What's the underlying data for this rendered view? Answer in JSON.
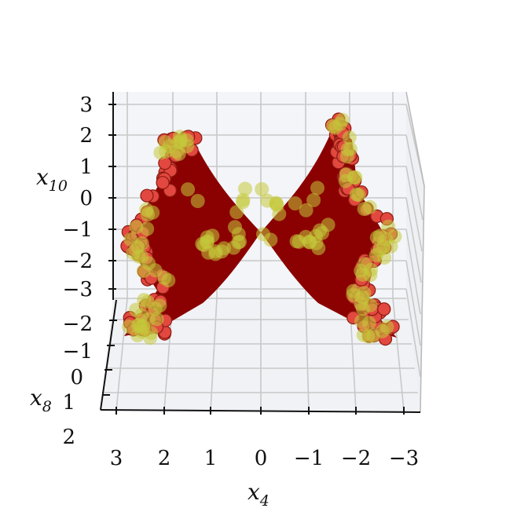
{
  "chart_data": {
    "type": "scatter",
    "projection": "3d",
    "title": "",
    "axes": {
      "x": {
        "label": "x",
        "subscript": "4",
        "ticks": [
          "3",
          "2",
          "1",
          "0",
          "−1",
          "−2",
          "−3"
        ],
        "range": [
          3,
          -3
        ],
        "inverted": true
      },
      "y": {
        "label": "x",
        "subscript": "8",
        "ticks": [
          "−2",
          "−1",
          "0",
          "1",
          "2"
        ],
        "range": [
          -2,
          2
        ]
      },
      "z": {
        "label": "x",
        "subscript": "10",
        "ticks": [
          "3",
          "2",
          "1",
          "0",
          "−1",
          "−2",
          "−3"
        ],
        "range": [
          -3,
          3
        ]
      }
    },
    "grid": true,
    "pane_color": "#f3f5f8",
    "series": [
      {
        "kind": "surface",
        "color": "#8b0000",
        "description_points": [
          {
            "x4": 0,
            "x10": -1.1
          },
          {
            "x4": 2.6,
            "x10": 2.5
          },
          {
            "x4": -1.9,
            "x10": 2.5
          },
          {
            "x4": 2.8,
            "x10": -3.2
          },
          {
            "x4": -2.4,
            "x10": -3.0
          }
        ]
      },
      {
        "kind": "scatter",
        "color": "#e2483f",
        "edge": "#8b1a10"
      },
      {
        "kind": "scatter",
        "color": "#c4c83a",
        "alpha": 0.55
      }
    ]
  }
}
